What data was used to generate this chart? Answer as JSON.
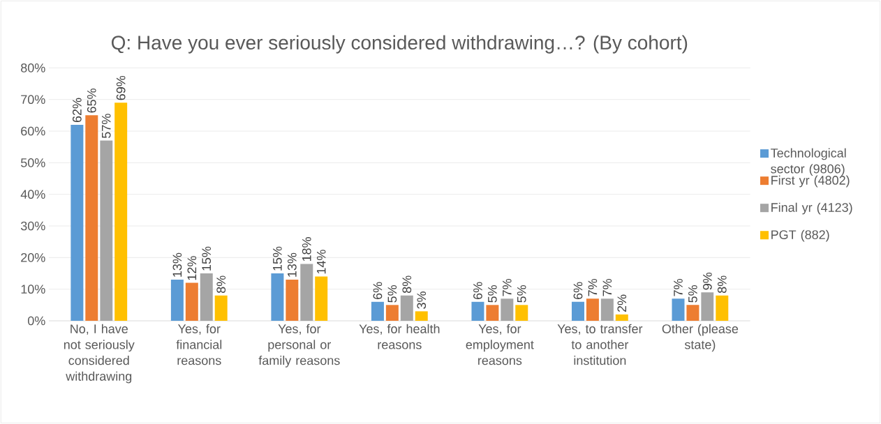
{
  "chart_data": {
    "type": "bar",
    "title": "Q: Have you ever seriously considered withdrawing…? (By cohort)",
    "categories": [
      "No, I have not seriously considered withdrawing",
      "Yes, for financial reasons",
      "Yes, for personal or family reasons",
      "Yes, for health reasons",
      "Yes, for employment reasons",
      "Yes, to transfer to another institution",
      "Other (please state)"
    ],
    "series": [
      {
        "name": "Technological sector (9806)",
        "color": "#5b9bd5",
        "values": [
          62,
          13,
          15,
          6,
          6,
          6,
          7
        ],
        "value_labels": [
          "62%",
          "13%",
          "15%",
          "6%",
          "6%",
          "6%",
          "7%"
        ]
      },
      {
        "name": "First yr (4802)",
        "color": "#ed7d31",
        "values": [
          65,
          12,
          13,
          5,
          5,
          7,
          5
        ],
        "value_labels": [
          "65%",
          "12%",
          "13%",
          "5%",
          "5%",
          "7%",
          "5%"
        ]
      },
      {
        "name": "Final yr (4123)",
        "color": "#a5a5a5",
        "values": [
          57,
          15,
          18,
          8,
          7,
          7,
          9
        ],
        "value_labels": [
          "57%",
          "15%",
          "18%",
          "8%",
          "7%",
          "7%",
          "9%"
        ]
      },
      {
        "name": "PGT (882)",
        "color": "#ffc000",
        "values": [
          69,
          8,
          14,
          3,
          5,
          2,
          8
        ],
        "value_labels": [
          "69%",
          "8%",
          "14%",
          "3%",
          "5%",
          "2%",
          "8%"
        ]
      }
    ],
    "ylim": [
      0,
      80
    ],
    "yticks": [
      {
        "value": 0,
        "label": "0%"
      },
      {
        "value": 10,
        "label": "10%"
      },
      {
        "value": 20,
        "label": "20%"
      },
      {
        "value": 30,
        "label": "30%"
      },
      {
        "value": 40,
        "label": "40%"
      },
      {
        "value": 50,
        "label": "50%"
      },
      {
        "value": 60,
        "label": "60%"
      },
      {
        "value": 70,
        "label": "70%"
      },
      {
        "value": 80,
        "label": "80%"
      }
    ],
    "grid": "y",
    "legend": "right"
  }
}
